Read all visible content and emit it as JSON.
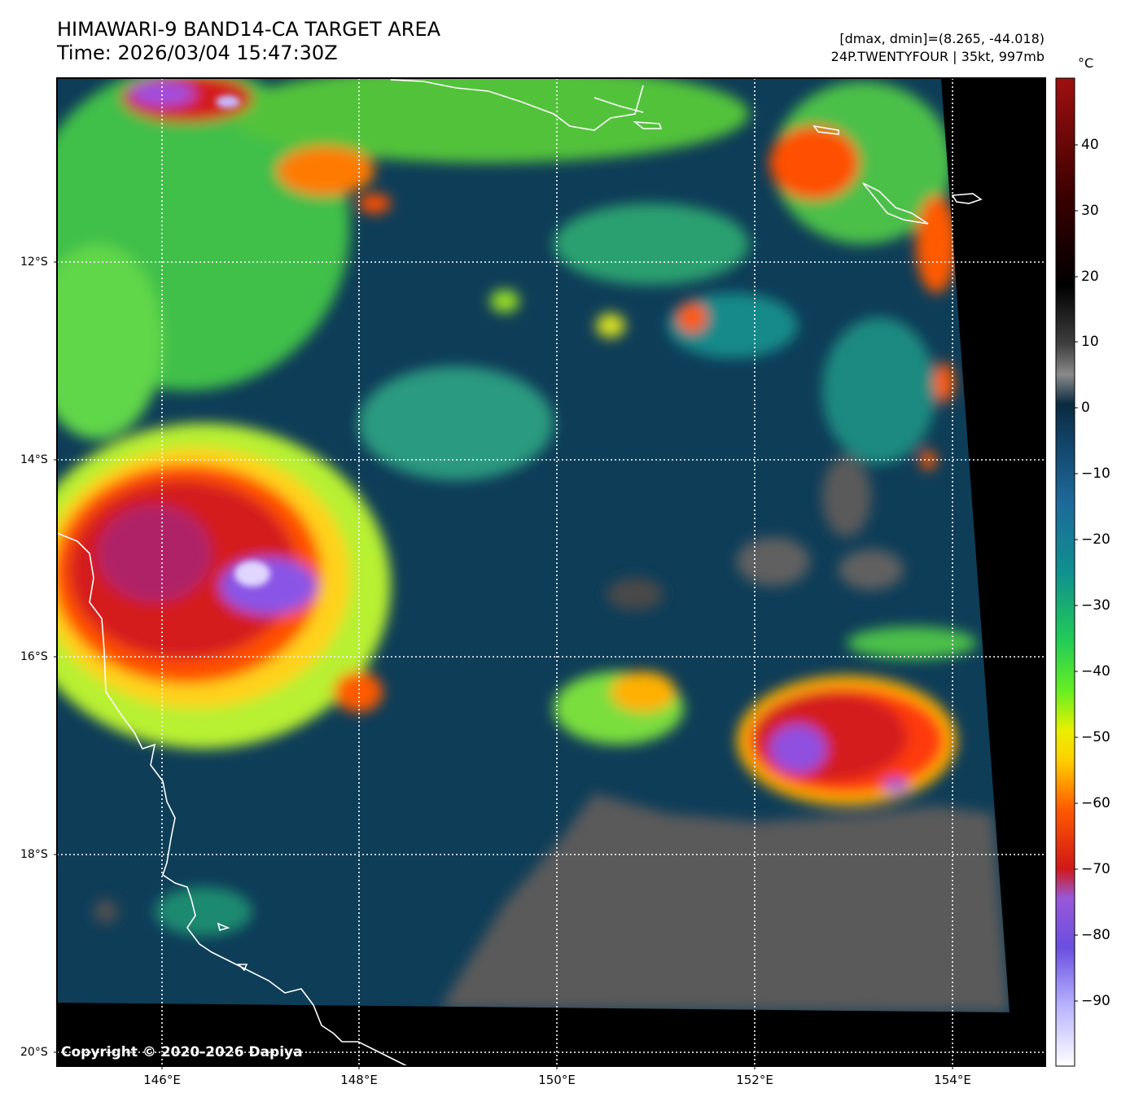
{
  "header": {
    "title_line1": "HIMAWARI-9 BAND14-CA TARGET AREA",
    "title_line2": "Time: 2026/03/04 15:47:30Z",
    "range_text": "[dmax, dmin]=(8.265, -44.018)",
    "storm_text": "24P.TWENTYFOUR | 35kt, 997mb"
  },
  "map": {
    "latitude_labels": [
      "12°S",
      "14°S",
      "16°S",
      "18°S",
      "20°S"
    ],
    "longitude_labels": [
      "146°E",
      "148°E",
      "150°E",
      "152°E",
      "154°E"
    ],
    "copyright": "Copyright © 2020-2026 Dapiya",
    "grid": "dotted white",
    "colors": {
      "no_data": "#000000",
      "warm_clear": "#0b3a55",
      "cold_top": "#d81f1f",
      "coldest": "#8a55e6",
      "coastline": "#ffffff"
    }
  },
  "colorbar": {
    "unit": "°C",
    "tick_labels": [
      "40",
      "30",
      "20",
      "10",
      "0",
      "−10",
      "−20",
      "−30",
      "−40",
      "−50",
      "−60",
      "−70",
      "−80",
      "−90"
    ],
    "range": [
      -100,
      50
    ]
  }
}
